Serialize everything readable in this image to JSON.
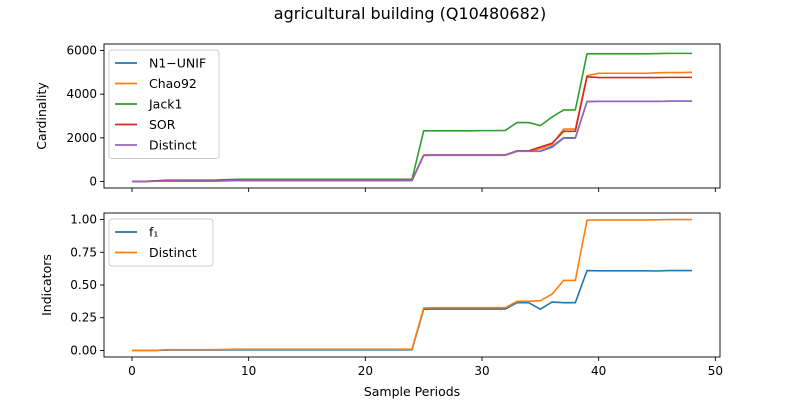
{
  "figure": {
    "title": "agricultural building (Q10480682)"
  },
  "colors": {
    "blue": "#1f77b4",
    "orange": "#ff7f0e",
    "green": "#2ca02c",
    "red": "#d62728",
    "purple": "#9467bd"
  },
  "chart_data": [
    {
      "type": "line",
      "panel": "top",
      "title": "agricultural building (Q10480682)",
      "xlabel": "",
      "ylabel": "Cardinality",
      "xlim": [
        -2.4,
        50.4
      ],
      "ylim": [
        -300,
        6300
      ],
      "xticks": [
        0,
        10,
        20,
        30,
        40,
        50
      ],
      "yticks": [
        0,
        2000,
        4000,
        6000
      ],
      "ytick_labels": [
        "0",
        "2000",
        "4000",
        "6000"
      ],
      "grid": false,
      "legend_position": "upper left",
      "x": [
        0,
        1,
        2,
        3,
        4,
        5,
        6,
        7,
        8,
        9,
        10,
        11,
        12,
        13,
        14,
        15,
        16,
        17,
        18,
        19,
        20,
        21,
        22,
        23,
        24,
        25,
        26,
        27,
        28,
        29,
        30,
        31,
        32,
        33,
        34,
        35,
        36,
        37,
        38,
        39,
        40,
        41,
        42,
        43,
        44,
        45,
        46,
        47,
        48
      ],
      "series": [
        {
          "name": "N1−UNIF",
          "color": "#1f77b4",
          "values": [
            0,
            0,
            10,
            20,
            20,
            20,
            20,
            20,
            30,
            40,
            40,
            40,
            40,
            40,
            40,
            40,
            40,
            40,
            40,
            40,
            40,
            40,
            40,
            40,
            40,
            1200,
            1210,
            1210,
            1210,
            1210,
            1210,
            1210,
            1210,
            1390,
            1390,
            1390,
            1600,
            2000,
            2000,
            3660,
            3670,
            3670,
            3670,
            3670,
            3670,
            3670,
            3680,
            3680,
            3680
          ]
        },
        {
          "name": "Chao92",
          "color": "#ff7f0e",
          "values": [
            0,
            0,
            20,
            40,
            40,
            40,
            40,
            40,
            50,
            60,
            60,
            60,
            60,
            60,
            60,
            60,
            60,
            60,
            60,
            60,
            60,
            60,
            60,
            60,
            60,
            1200,
            1210,
            1210,
            1210,
            1210,
            1210,
            1210,
            1210,
            1400,
            1400,
            1500,
            1700,
            2400,
            2400,
            4850,
            4960,
            4960,
            4960,
            4960,
            4960,
            4980,
            4990,
            4990,
            5000
          ]
        },
        {
          "name": "Jack1",
          "color": "#2ca02c",
          "values": [
            0,
            0,
            30,
            60,
            60,
            60,
            60,
            60,
            80,
            100,
            100,
            100,
            100,
            100,
            100,
            100,
            100,
            100,
            100,
            100,
            100,
            100,
            100,
            100,
            100,
            2320,
            2320,
            2320,
            2320,
            2320,
            2330,
            2330,
            2340,
            2700,
            2700,
            2560,
            2950,
            3280,
            3280,
            5850,
            5850,
            5850,
            5850,
            5850,
            5850,
            5860,
            5870,
            5870,
            5870
          ]
        },
        {
          "name": "SOR",
          "color": "#d62728",
          "values": [
            0,
            0,
            20,
            40,
            40,
            40,
            40,
            40,
            50,
            60,
            60,
            60,
            60,
            60,
            60,
            60,
            60,
            60,
            60,
            60,
            60,
            60,
            60,
            60,
            60,
            1210,
            1210,
            1210,
            1210,
            1210,
            1210,
            1210,
            1210,
            1400,
            1400,
            1580,
            1750,
            2300,
            2300,
            4800,
            4760,
            4760,
            4760,
            4760,
            4760,
            4760,
            4770,
            4770,
            4770
          ]
        },
        {
          "name": "Distinct",
          "color": "#9467bd",
          "values": [
            0,
            0,
            10,
            20,
            20,
            20,
            20,
            20,
            30,
            40,
            40,
            40,
            40,
            40,
            40,
            40,
            40,
            40,
            40,
            40,
            40,
            40,
            40,
            40,
            40,
            1190,
            1200,
            1200,
            1200,
            1200,
            1200,
            1200,
            1200,
            1380,
            1380,
            1380,
            1560,
            1980,
            1980,
            3660,
            3670,
            3670,
            3670,
            3670,
            3670,
            3670,
            3680,
            3680,
            3680
          ]
        }
      ]
    },
    {
      "type": "line",
      "panel": "bottom",
      "title": "",
      "xlabel": "Sample Periods",
      "ylabel": "Indicators",
      "xlim": [
        -2.4,
        50.4
      ],
      "ylim": [
        -0.05,
        1.05
      ],
      "xticks": [
        0,
        10,
        20,
        30,
        40,
        50
      ],
      "yticks": [
        0.0,
        0.25,
        0.5,
        0.75,
        1.0
      ],
      "ytick_labels": [
        "0.00",
        "0.25",
        "0.50",
        "0.75",
        "1.00"
      ],
      "grid": false,
      "legend_position": "upper left",
      "x": [
        0,
        1,
        2,
        3,
        4,
        5,
        6,
        7,
        8,
        9,
        10,
        11,
        12,
        13,
        14,
        15,
        16,
        17,
        18,
        19,
        20,
        21,
        22,
        23,
        24,
        25,
        26,
        27,
        28,
        29,
        30,
        31,
        32,
        33,
        34,
        35,
        36,
        37,
        38,
        39,
        40,
        41,
        42,
        43,
        44,
        45,
        46,
        47,
        48
      ],
      "series": [
        {
          "name": "f₁",
          "color": "#1f77b4",
          "values": [
            0,
            0,
            0,
            0.003,
            0.003,
            0.003,
            0.003,
            0.003,
            0.004,
            0.005,
            0.005,
            0.005,
            0.005,
            0.005,
            0.005,
            0.005,
            0.005,
            0.005,
            0.005,
            0.005,
            0.005,
            0.005,
            0.005,
            0.005,
            0.005,
            0.315,
            0.316,
            0.316,
            0.316,
            0.316,
            0.316,
            0.316,
            0.316,
            0.365,
            0.365,
            0.315,
            0.37,
            0.365,
            0.365,
            0.61,
            0.608,
            0.608,
            0.608,
            0.608,
            0.608,
            0.607,
            0.61,
            0.61,
            0.61
          ]
        },
        {
          "name": "Distinct",
          "color": "#ff7f0e",
          "values": [
            0,
            0,
            0,
            0.006,
            0.006,
            0.006,
            0.006,
            0.006,
            0.008,
            0.01,
            0.01,
            0.01,
            0.01,
            0.01,
            0.01,
            0.01,
            0.01,
            0.01,
            0.01,
            0.01,
            0.01,
            0.01,
            0.01,
            0.01,
            0.01,
            0.325,
            0.327,
            0.327,
            0.327,
            0.327,
            0.327,
            0.327,
            0.327,
            0.375,
            0.375,
            0.38,
            0.43,
            0.535,
            0.535,
            0.995,
            0.997,
            0.997,
            0.997,
            0.997,
            0.997,
            0.998,
            1.0,
            1.0,
            1.0
          ]
        }
      ]
    }
  ]
}
